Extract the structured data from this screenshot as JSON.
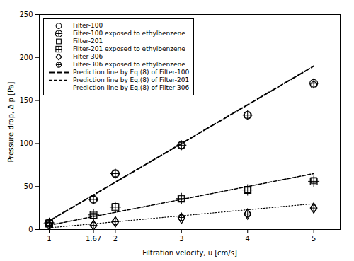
{
  "chart_data": {
    "type": "scatter",
    "xlabel": "Filtration velocity, u [cm/s]",
    "ylabel": "Pressure drop, Δ p [Pa]",
    "xlim": [
      0.85,
      5.4
    ],
    "ylim": [
      0,
      250
    ],
    "xticks": [
      1,
      1.67,
      2,
      3,
      4,
      5
    ],
    "yticks": [
      0,
      50,
      100,
      150,
      200,
      250
    ],
    "grid": false,
    "legend": "upper left",
    "series": [
      {
        "name": "Filter-100",
        "type": "scatter",
        "marker": "circle",
        "color": "#000000",
        "x": [
          1,
          1.67,
          2,
          3,
          4,
          5
        ],
        "values": [
          8,
          35,
          65,
          98,
          133,
          168
        ]
      },
      {
        "name": "Filter-100 exposed to ethylbenzene",
        "type": "scatter",
        "marker": "big_circle_plus",
        "color": "#000000",
        "x": [
          1,
          1.67,
          2,
          3,
          4,
          5
        ],
        "values": [
          8,
          35,
          65,
          98,
          133,
          170
        ]
      },
      {
        "name": "Filter-201",
        "type": "scatter",
        "marker": "square",
        "color": "#000000",
        "x": [
          1,
          1.67,
          2,
          3,
          4,
          5
        ],
        "values": [
          7,
          16,
          27,
          36,
          46,
          57
        ]
      },
      {
        "name": "Filter-201 exposed to ethylbenzene",
        "type": "scatter",
        "marker": "square_plus",
        "color": "#000000",
        "x": [
          1,
          1.67,
          2,
          3,
          4,
          5
        ],
        "values": [
          7,
          17,
          26,
          36,
          46,
          56
        ]
      },
      {
        "name": "Filter-306",
        "type": "scatter",
        "marker": "diamond",
        "color": "#000000",
        "x": [
          1,
          1.67,
          2,
          3,
          4,
          5
        ],
        "values": [
          5,
          5,
          9,
          13,
          18,
          25
        ]
      },
      {
        "name": "Filter-306 exposed to ethylbenzene",
        "type": "scatter",
        "marker": "circle_plus",
        "color": "#000000",
        "x": [
          1,
          1.67,
          2,
          3,
          4,
          5
        ],
        "values": [
          5,
          5,
          9,
          14,
          18,
          25
        ]
      },
      {
        "name": "Prediction line by Eq.(8) of Filter-100",
        "type": "line",
        "line_style": "long_dashed",
        "color": "#000000",
        "x": [
          1,
          5
        ],
        "values": [
          10,
          190
        ]
      },
      {
        "name": "Prediction line by Eq.(8) of Filter-201",
        "type": "line",
        "line_style": "dashed",
        "color": "#000000",
        "x": [
          1,
          5
        ],
        "values": [
          5,
          65
        ]
      },
      {
        "name": "Prediction line by Eq.(8) of Filter-306",
        "type": "line",
        "line_style": "dotted",
        "color": "#000000",
        "x": [
          1,
          5
        ],
        "values": [
          2,
          30
        ]
      }
    ]
  }
}
